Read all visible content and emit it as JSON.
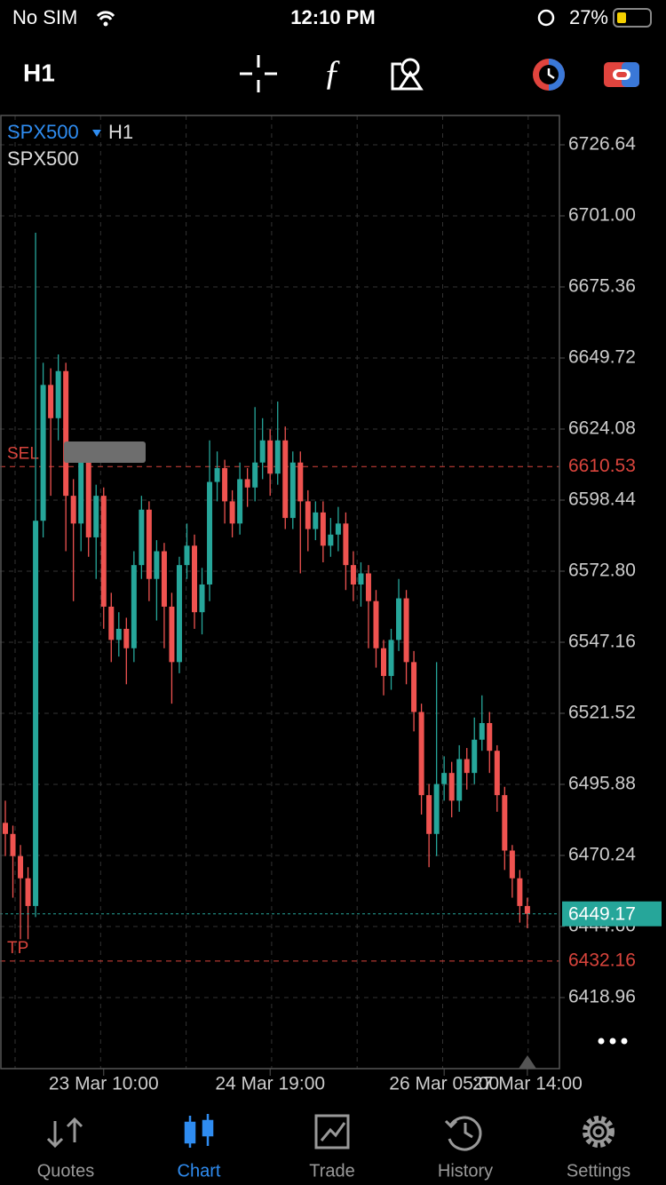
{
  "status_bar": {
    "carrier": "No SIM",
    "time": "12:10 PM",
    "battery": "27%"
  },
  "toolbar": {
    "timeframe": "H1"
  },
  "chart_data": {
    "type": "candlestick",
    "symbol": "SPX500",
    "timeframe": "H1",
    "subtitle": "SPX500",
    "categories": [
      null,
      null,
      null,
      null,
      null,
      null,
      null,
      null,
      null,
      null,
      null,
      null,
      null,
      "23 Mar 10:00",
      null,
      null,
      null,
      null,
      null,
      null,
      null,
      null,
      null,
      null,
      null,
      null,
      null,
      null,
      null,
      null,
      null,
      null,
      null,
      null,
      null,
      "24 Mar 19:00",
      null,
      null,
      null,
      null,
      null,
      null,
      null,
      null,
      null,
      null,
      null,
      null,
      null,
      null,
      null,
      null,
      null,
      null,
      null,
      null,
      null,
      null,
      "26 Mar 05:00",
      null,
      null,
      null,
      null,
      null,
      null,
      null,
      null,
      null,
      null,
      "27 Mar 14:00"
    ],
    "open": [
      6482,
      6478,
      6470,
      6462,
      6452,
      6591,
      6640,
      6628,
      6645,
      6600,
      6590,
      6612,
      6585,
      6600,
      6560,
      6548,
      6552,
      6545,
      6575,
      6595,
      6570,
      6580,
      6560,
      6540,
      6575,
      6582,
      6558,
      6568,
      6605,
      6610,
      6598,
      6590,
      6606,
      6603,
      6612,
      6620,
      6608,
      6620,
      6592,
      6612,
      6598,
      6588,
      6594,
      6582,
      6586,
      6590,
      6575,
      6568,
      6572,
      6562,
      6545,
      6535,
      6548,
      6563,
      6540,
      6522,
      6492,
      6478,
      6496,
      6500,
      6490,
      6505,
      6500,
      6512,
      6518,
      6508,
      6492,
      6472,
      6462,
      6452
    ],
    "high": [
      6490,
      6481,
      6474,
      6466,
      6694.9,
      6648,
      6646,
      6651,
      6648,
      6606,
      6618,
      6615,
      6604,
      6603,
      6565,
      6558,
      6556,
      6580,
      6600,
      6598,
      6584,
      6583,
      6565,
      6578,
      6590,
      6586,
      6574,
      6620,
      6616,
      6613,
      6602,
      6612,
      6610,
      6632,
      6628,
      6624,
      6634,
      6625,
      6616,
      6616,
      6602,
      6598,
      6598,
      6592,
      6596,
      6594,
      6580,
      6576,
      6575,
      6566,
      6548,
      6552,
      6570,
      6566,
      6544,
      6525,
      6496,
      6540,
      6506,
      6504,
      6510,
      6509,
      6520,
      6528,
      6522,
      6510,
      6495,
      6474,
      6465,
      6455
    ],
    "low": [
      6470,
      6455,
      6440,
      6440,
      6448,
      6585,
      6600,
      6620,
      6580,
      6562,
      6580,
      6578,
      6570,
      6552,
      6540,
      6542,
      6532,
      6540,
      6570,
      6562,
      6555,
      6545,
      6525,
      6536,
      6570,
      6552,
      6550,
      6562,
      6598,
      6590,
      6585,
      6586,
      6596,
      6598,
      6606,
      6600,
      6604,
      6588,
      6588,
      6572,
      6580,
      6584,
      6576,
      6578,
      6580,
      6566,
      6562,
      6560,
      6545,
      6538,
      6528,
      6530,
      6544,
      6532,
      6515,
      6485,
      6466,
      6470,
      6490,
      6484,
      6486,
      6494,
      6496,
      6508,
      6500,
      6486,
      6465,
      6455,
      6446,
      6444
    ],
    "close": [
      6478,
      6470,
      6462,
      6452,
      6591,
      6640,
      6628,
      6645,
      6600,
      6590,
      6612,
      6585,
      6600,
      6560,
      6548,
      6552,
      6545,
      6575,
      6595,
      6570,
      6580,
      6560,
      6540,
      6575,
      6582,
      6558,
      6568,
      6605,
      6610,
      6598,
      6590,
      6606,
      6603,
      6612,
      6620,
      6608,
      6620,
      6592,
      6612,
      6598,
      6588,
      6594,
      6582,
      6586,
      6590,
      6575,
      6568,
      6572,
      6562,
      6545,
      6535,
      6548,
      6563,
      6540,
      6522,
      6492,
      6478,
      6496,
      6500,
      6490,
      6505,
      6500,
      6512,
      6518,
      6508,
      6492,
      6472,
      6462,
      6452,
      6449.17
    ],
    "up_color": "#26a69a",
    "down_color": "#ef5350",
    "ylim": [
      6393.32,
      6737.22
    ],
    "yticks": [
      6726.64,
      {
        "value": 6701,
        "label": "6701.00"
      },
      6675.36,
      6649.72,
      6624.08,
      6598.44,
      {
        "value": 6572.8,
        "label": "6572.80"
      },
      6547.16,
      6521.52,
      6495.88,
      6470.24,
      {
        "value": 6444.6,
        "label": "6444.60"
      },
      6418.96
    ],
    "grid": true,
    "levels": [
      {
        "name": "SEL",
        "value": 6610.53,
        "color": "#d9443c"
      },
      {
        "name": "TP",
        "value": 6432.16,
        "color": "#d9443c"
      }
    ],
    "last_price": 6449.17,
    "last_price_color": "#26a69a"
  },
  "tabs": [
    "Quotes",
    "Chart",
    "Trade",
    "History",
    "Settings"
  ]
}
